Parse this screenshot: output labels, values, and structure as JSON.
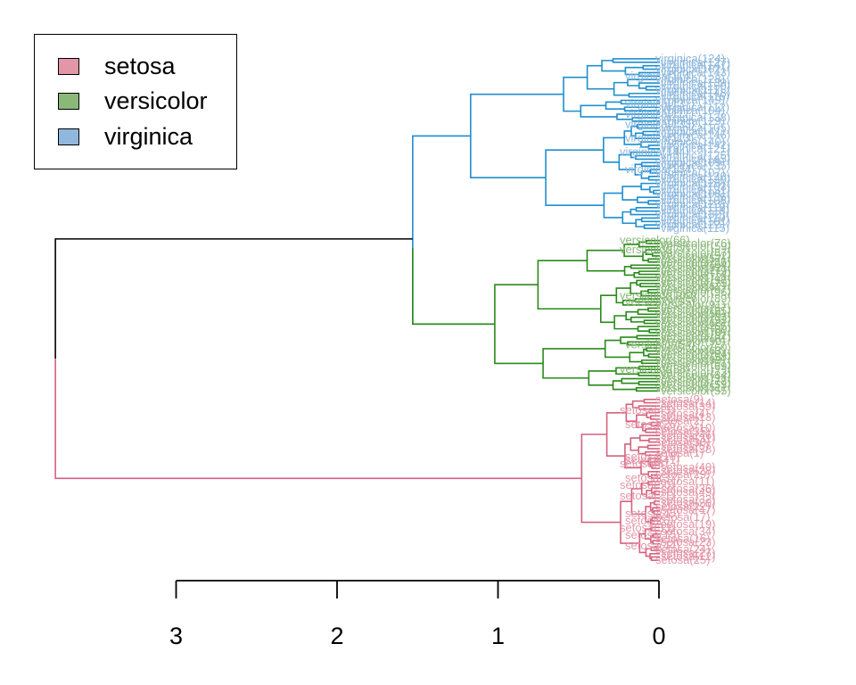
{
  "chart_data": {
    "type": "dendrogram",
    "orientation": "horizontal",
    "xlim": [
      0,
      3.77
    ],
    "axis": {
      "ticks": [
        3,
        2,
        1,
        0
      ],
      "tick_labels": [
        "3",
        "2",
        "1",
        "0"
      ]
    },
    "root_height": 3.75,
    "clusters": [
      {
        "name": "setosa",
        "color": "#d5627f",
        "label_color": "#e396a8",
        "merge_height": 0.48,
        "leaf_count": 50,
        "visible_leaf_labels": [
          "setosa(9)",
          "setosa(14)",
          "setosa(39)",
          "setosa(43)",
          "setosa(4)",
          "setosa(13)",
          "setosa(2)",
          "setosa(26)",
          "setosa(10)",
          "setosa(35)",
          "setosa(46)",
          "setosa(31)",
          "setosa(30)",
          "setosa(5)",
          "setosa(38)",
          "setosa(1)",
          "setosa(18)",
          "setosa(41)",
          "setosa(8)",
          "setosa(40)",
          "setosa(28)",
          "setosa(29)",
          "setosa(37)",
          "setosa(11)",
          "setosa(50)",
          "setosa(36)",
          "setosa(49)",
          "setosa(21)",
          "setosa(32)",
          "setosa(20)",
          "setosa(22)",
          "setosa(47)",
          "setosa(45)",
          "setosa(17)",
          "setosa(6)",
          "setosa(19)",
          "setosa(33)",
          "setosa(34)",
          "setosa(15)",
          "setosa(16)",
          "setosa(23)",
          "setosa(44)",
          "setosa(24)",
          "setosa(27)",
          "setosa(12)",
          "setosa(25)"
        ]
      },
      {
        "name": "versicolor",
        "color": "#2a8a1a",
        "label_color": "#8ab878",
        "merge_height": 1.02,
        "leaf_count": 50,
        "visible_leaf_labels": [
          "versicolor(66)",
          "versicolor(76)",
          "versicolor(59)",
          "versicolor(77)",
          "versicolor(87)",
          "versicolor(52)",
          "versicolor(57)",
          "versicolor(86)",
          "versicolor(64)",
          "versicolor(92)",
          "versicolor(79)",
          "versicolor(74)",
          "versicolor(72)",
          "versicolor(98)",
          "versicolor(75)",
          "versicolor(62)",
          "versicolor(97)",
          "versicolor(96)",
          "versicolor(100)",
          "versicolor(89)",
          "versicolor(95)",
          "versicolor(91)",
          "versicolor(67)",
          "versicolor(85)",
          "versicolor(56)",
          "versicolor(83)",
          "versicolor(93)",
          "versicolor(68)",
          "versicolor(65)",
          "versicolor(80)",
          "versicolor(70)",
          "versicolor(82)",
          "versicolor(81)",
          "versicolor(90)",
          "versicolor(54)",
          "versicolor(60)",
          "versicolor(63)",
          "versicolor(94)",
          "versicolor(58)",
          "versicolor(99)",
          "versicolor(61)",
          "versicolor(69)",
          "versicolor(88)",
          "versicolor(73)",
          "versicolor(84)",
          "versicolor(71)",
          "versicolor(78)",
          "versicolor(53)",
          "versicolor(51)",
          "versicolor(55)"
        ]
      },
      {
        "name": "virginica",
        "color": "#1f8fcf",
        "label_color": "#8fb8dc",
        "merge_height": 1.17,
        "leaf_count": 50,
        "visible_leaf_labels": [
          "virginica(124)",
          "virginica(127)",
          "virginica(147)",
          "virginica(102)",
          "virginica(143)",
          "virginica(114)",
          "virginica(128)",
          "virginica(139)",
          "virginica(150)",
          "virginica(111)",
          "virginica(148)",
          "virginica(116)",
          "virginica(149)",
          "virginica(137)",
          "virginica(112)",
          "virginica(104)",
          "virginica(117)",
          "virginica(138)",
          "virginica(129)",
          "virginica(133)",
          "virginica(105)",
          "virginica(141)",
          "virginica(146)",
          "virginica(113)",
          "virginica(140)",
          "virginica(142)",
          "virginica(121)",
          "virginica(144)",
          "virginica(125)",
          "virginica(145)",
          "virginica(109)",
          "virginica(135)",
          "virginica(134)",
          "virginica(107)",
          "virginica(120)",
          "virginica(130)",
          "virginica(126)",
          "virginica(103)",
          "virginica(131)",
          "virginica(108)",
          "virginica(136)",
          "virginica(106)",
          "virginica(123)",
          "virginica(119)",
          "virginica(118)",
          "virginica(132)",
          "virginica(110)",
          "virginica(101)",
          "virginica(122)",
          "virginica(115)"
        ]
      }
    ],
    "top_merge_height": 1.53,
    "legend": {
      "position": "top-left",
      "entries": [
        "setosa",
        "versicolor",
        "virginica"
      ]
    }
  }
}
